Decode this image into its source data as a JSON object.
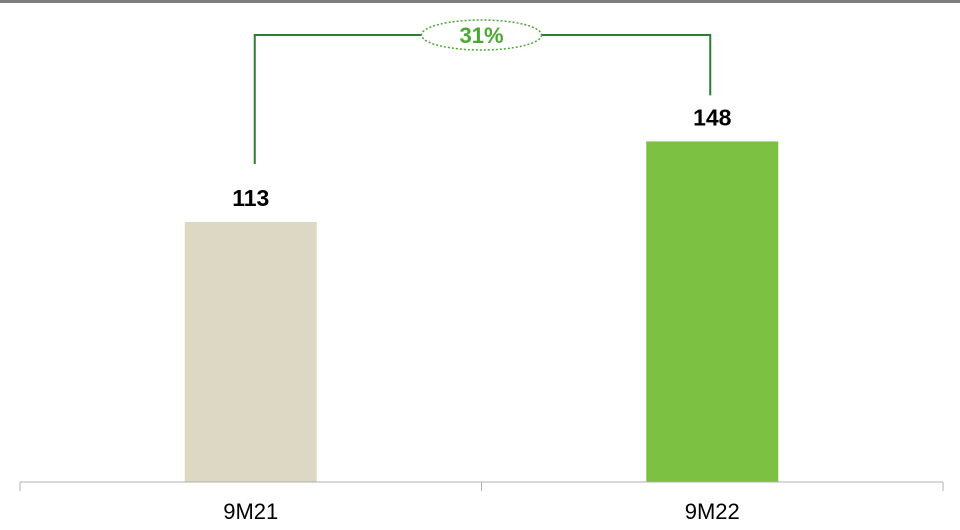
{
  "colors": {
    "bar_9M21": "#ddd8c4",
    "bar_9M22": "#7cc142",
    "bracket": "#2e7d32",
    "growth_text": "#4aa832",
    "axis": "#b0b0b0"
  },
  "chart_data": {
    "type": "bar",
    "categories": [
      "9M21",
      "9M22"
    ],
    "values": [
      113,
      148
    ],
    "value_labels": [
      "113",
      "148"
    ],
    "title": "",
    "xlabel": "",
    "ylabel": "",
    "ylim": [
      0,
      166
    ],
    "grid": false,
    "annotations": [
      {
        "type": "growth-bracket",
        "from": "9M21",
        "to": "9M22",
        "text": "31%"
      }
    ]
  }
}
